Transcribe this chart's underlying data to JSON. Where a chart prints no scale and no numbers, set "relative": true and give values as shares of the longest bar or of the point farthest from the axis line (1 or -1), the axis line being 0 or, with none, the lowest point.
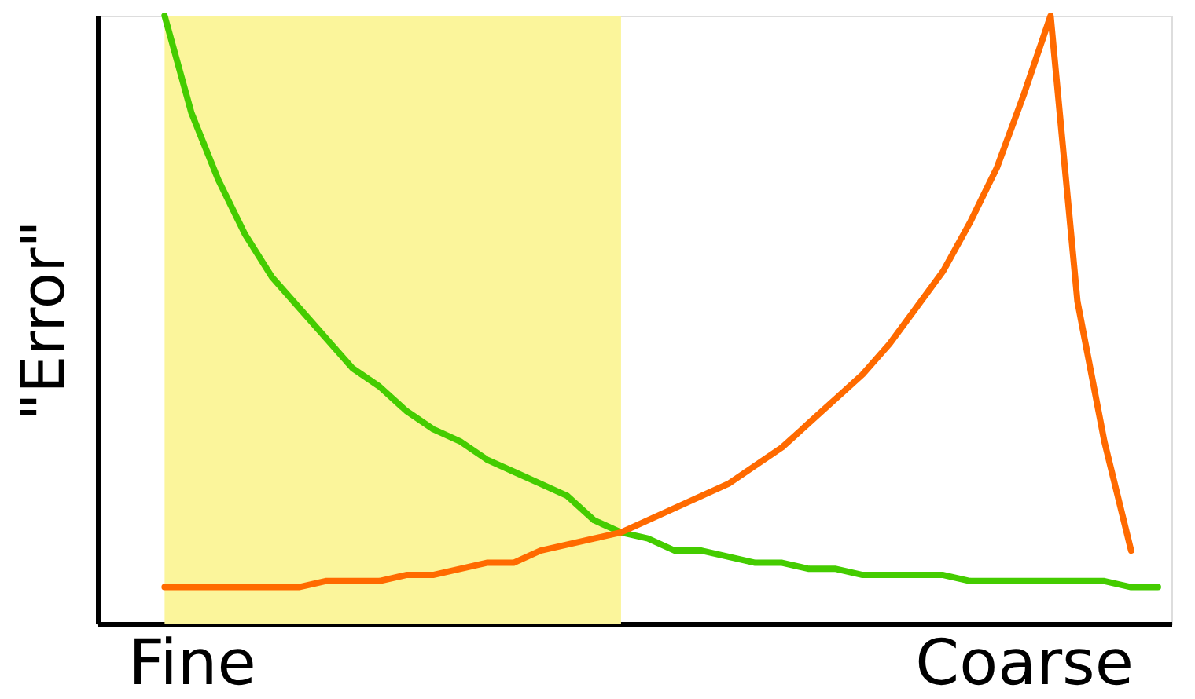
{
  "chart_data": {
    "type": "line",
    "relative": true,
    "ylabel": "\"Error\"",
    "categories": [
      null,
      null,
      null,
      "Fine",
      null,
      null,
      null,
      null,
      null,
      null,
      null,
      null,
      null,
      null,
      null,
      null,
      null,
      null,
      null,
      null,
      null,
      null,
      null,
      null,
      null,
      null,
      null,
      null,
      null,
      null,
      null,
      null,
      null,
      null,
      "Coarse",
      null,
      null,
      null,
      null,
      null
    ],
    "grid": false,
    "marker": "none",
    "line_style": "solid",
    "series": [
      {
        "type": "area",
        "color": "#fbf59b",
        "values": [
          null,
          null,
          1.0,
          1.0,
          1.0,
          1.0,
          1.0,
          1.0,
          1.0,
          1.0,
          1.0,
          1.0,
          1.0,
          1.0,
          1.0,
          1.0,
          1.0,
          1.0,
          1.0,
          1.0,
          null,
          null,
          null,
          null,
          null,
          null,
          null,
          null,
          null,
          null,
          null,
          null,
          null,
          null,
          null,
          null,
          null,
          null,
          null,
          null
        ]
      },
      {
        "color": "#44cc00",
        "values": [
          null,
          null,
          1.0,
          0.84,
          0.73,
          0.64,
          0.57,
          0.52,
          0.47,
          0.42,
          0.39,
          0.35,
          0.32,
          0.3,
          0.27,
          0.25,
          0.23,
          0.21,
          0.17,
          0.15,
          0.14,
          0.12,
          0.12,
          0.11,
          0.1,
          0.1,
          0.09,
          0.09,
          0.08,
          0.08,
          0.08,
          0.08,
          0.07,
          0.07,
          0.07,
          0.07,
          0.07,
          0.07,
          0.06,
          0.06
        ]
      },
      {
        "color": "#ff6a00",
        "values": [
          null,
          null,
          0.06,
          0.06,
          0.06,
          0.06,
          0.06,
          0.06,
          0.07,
          0.07,
          0.07,
          0.08,
          0.08,
          0.09,
          0.1,
          0.1,
          0.12,
          0.13,
          0.14,
          0.15,
          0.17,
          0.19,
          0.21,
          0.23,
          0.26,
          0.29,
          0.33,
          0.37,
          0.41,
          0.46,
          0.52,
          0.58,
          0.66,
          0.75,
          0.87,
          1.0,
          0.53,
          0.3,
          0.12,
          null
        ]
      }
    ]
  }
}
